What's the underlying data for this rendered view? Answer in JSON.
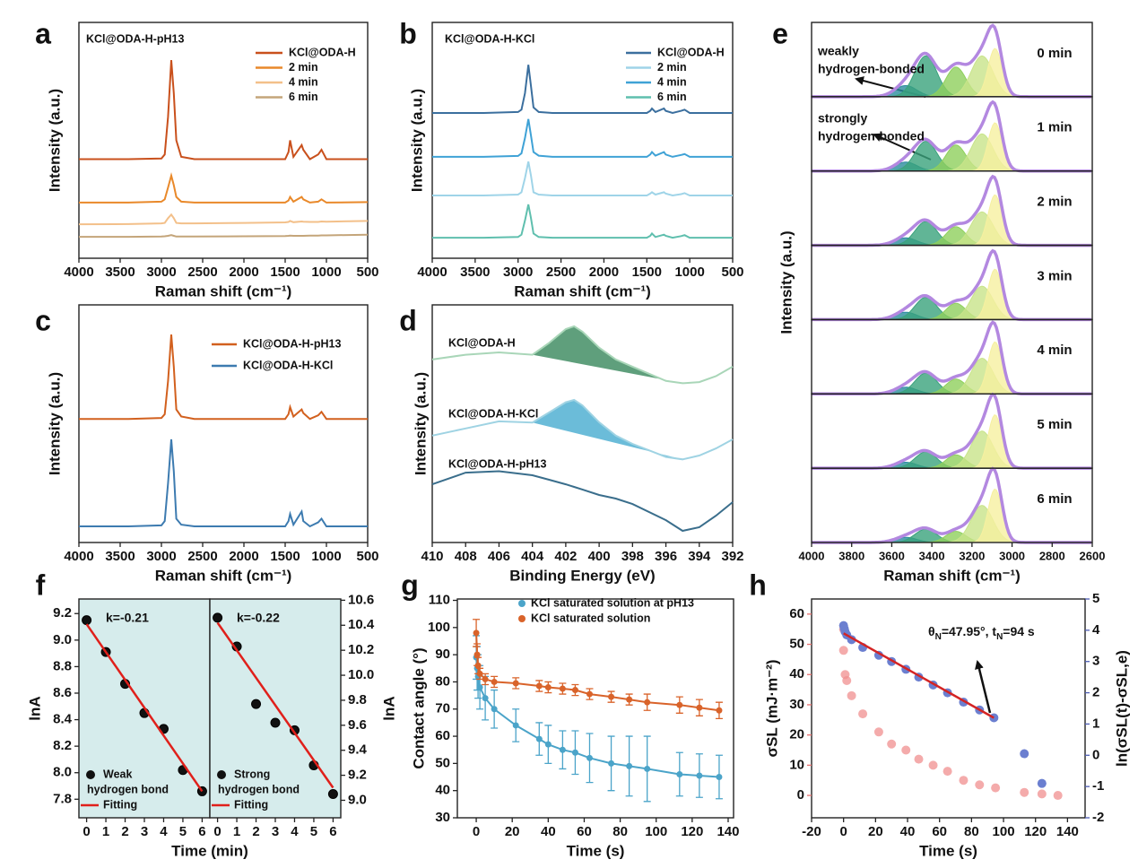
{
  "chart_data": [
    {
      "type": "line",
      "panel": "a",
      "annotation": "KCl@ODA-H-pH13",
      "xlabel": "Raman shift (cm⁻¹)",
      "ylabel": "Intensity (a.u.)",
      "x": [
        4000,
        3400,
        3000,
        2960,
        2920,
        2880,
        2850,
        2820,
        2760,
        2600,
        2000,
        1500,
        1460,
        1440,
        1400,
        1300,
        1280,
        1200,
        1100,
        1060,
        1000,
        500
      ],
      "xlim": [
        4000,
        500
      ],
      "xticks": [
        4000,
        3500,
        3000,
        2500,
        2000,
        1500,
        1000,
        500
      ],
      "ylim": [
        0,
        100
      ],
      "series": [
        {
          "name": "KCl@ODA-H",
          "color": "#c9501c",
          "values": [
            42,
            42,
            42.3,
            44,
            60,
            84,
            70,
            50,
            43,
            42,
            42,
            42,
            45,
            50,
            43,
            48,
            46,
            42,
            44,
            46,
            42,
            42
          ]
        },
        {
          "name": "2 min",
          "color": "#e9892a",
          "values": [
            23.6,
            23.6,
            24,
            25,
            30,
            35,
            31,
            26,
            24,
            23.6,
            23.6,
            23.6,
            24.5,
            26,
            24,
            26,
            25,
            23.6,
            24,
            25,
            23.6,
            23.8
          ]
        },
        {
          "name": "4 min",
          "color": "#f3c08a",
          "values": [
            14.4,
            14.5,
            14.8,
            15,
            17,
            18.5,
            17,
            15,
            14.8,
            14.8,
            15,
            15.2,
            15.4,
            15.8,
            15.3,
            15.6,
            15.5,
            15.4,
            15.4,
            15.6,
            15.5,
            15.8
          ]
        },
        {
          "name": "6 min",
          "color": "#c4a57a",
          "values": [
            9.1,
            9.1,
            9.2,
            9.3,
            9.5,
            9.8,
            9.5,
            9.2,
            9.2,
            9.2,
            9.3,
            9.4,
            9.5,
            9.6,
            9.5,
            9.5,
            9.5,
            9.6,
            9.6,
            9.7,
            9.7,
            10
          ]
        }
      ]
    },
    {
      "type": "line",
      "panel": "b",
      "annotation": "KCl@ODA-H-KCl",
      "xlabel": "Raman shift (cm⁻¹)",
      "ylabel": "Intensity (a.u.)",
      "x": [
        4000,
        3400,
        3000,
        2960,
        2920,
        2880,
        2850,
        2820,
        2760,
        2600,
        2000,
        1500,
        1460,
        1440,
        1400,
        1300,
        1280,
        1200,
        1100,
        1060,
        1000,
        500
      ],
      "xlim": [
        4000,
        500
      ],
      "xticks": [
        4000,
        3500,
        3000,
        2500,
        2000,
        1500,
        1000,
        500
      ],
      "ylim": [
        0,
        100
      ],
      "series": [
        {
          "name": "KCl@ODA-H",
          "color": "#3b6f9e",
          "values": [
            61.6,
            61.6,
            62,
            63,
            70,
            82,
            73,
            64,
            62,
            61.6,
            61.6,
            61.6,
            62.5,
            63.5,
            62,
            63.5,
            62.5,
            61.6,
            62.5,
            63,
            61.6,
            61.6
          ]
        },
        {
          "name": "2 min",
          "color": "#9fd4e8",
          "values": [
            26.6,
            26.6,
            27,
            28,
            34,
            41,
            35,
            28,
            27,
            26.6,
            26.6,
            26.6,
            27.4,
            28,
            27,
            28,
            27.4,
            26.6,
            27.2,
            27.6,
            26.6,
            26.6
          ]
        },
        {
          "name": "4 min",
          "color": "#3fa2d6",
          "values": [
            43,
            43,
            43.4,
            44.5,
            51,
            59,
            52,
            45,
            43.5,
            43,
            43,
            43,
            44,
            45,
            43.5,
            45,
            44,
            43,
            43.8,
            44.2,
            43,
            43
          ]
        },
        {
          "name": "6 min",
          "color": "#5fbfae",
          "values": [
            8.7,
            8.7,
            9,
            10,
            16,
            22.8,
            17,
            10.5,
            9,
            8.7,
            8.7,
            8.7,
            9.5,
            10.5,
            9,
            10,
            9.5,
            8.7,
            9.4,
            9.8,
            8.7,
            8.7
          ]
        }
      ]
    },
    {
      "type": "line",
      "panel": "c",
      "xlabel": "Raman shift (cm⁻¹)",
      "ylabel": "Intensity (a.u.)",
      "x": [
        4000,
        3400,
        3000,
        2960,
        2920,
        2880,
        2850,
        2820,
        2760,
        2600,
        2000,
        1500,
        1460,
        1440,
        1400,
        1300,
        1280,
        1200,
        1100,
        1060,
        1000,
        500
      ],
      "xlim": [
        4000,
        500
      ],
      "xticks": [
        4000,
        3500,
        3000,
        2500,
        2000,
        1500,
        1000,
        500
      ],
      "ylim": [
        0,
        100
      ],
      "series": [
        {
          "name": "KCl@ODA-H-pH13",
          "color": "#d2601e",
          "values": [
            52,
            52,
            52.4,
            54,
            68,
            87.5,
            74,
            56,
            53,
            52,
            52,
            52,
            54,
            57,
            53,
            56,
            54.5,
            52,
            53.5,
            55,
            52,
            52
          ]
        },
        {
          "name": "KCl@ODA-H-KCl",
          "color": "#3d7bb0",
          "values": [
            6.8,
            6.8,
            7.2,
            9,
            25,
            43.4,
            30,
            10,
            7.5,
            6.8,
            6.8,
            6.8,
            9,
            12,
            7.5,
            13,
            9,
            6.8,
            8.5,
            10,
            6.8,
            6.8
          ]
        }
      ]
    },
    {
      "type": "area",
      "panel": "d",
      "xlabel": "Binding Energy (eV)",
      "ylabel": "Intensity (a.u.)",
      "x": [
        410,
        408,
        406,
        404,
        403,
        402,
        401.5,
        401,
        400,
        399,
        398,
        396,
        395,
        394,
        393,
        392
      ],
      "xlim": [
        410,
        392
      ],
      "xticks": [
        410,
        408,
        406,
        404,
        402,
        400,
        398,
        396,
        394,
        392
      ],
      "ylim": [
        0,
        100
      ],
      "series": [
        {
          "name": "KCl@ODA-H",
          "color": "#a9d6b8",
          "fill": "#5f9f7c",
          "values": [
            77,
            79,
            80,
            79,
            84,
            89.8,
            91,
            88.7,
            82,
            77,
            74,
            68,
            67,
            67.5,
            70,
            74
          ]
        },
        {
          "name": "KCl@ODA-H-KCl",
          "color": "#9fd3e3",
          "fill": "#6bbcd9",
          "values": [
            45,
            48,
            51,
            50.5,
            54.7,
            59,
            60,
            57.7,
            50.6,
            45,
            41.5,
            36,
            35,
            36.6,
            39.6,
            43.4
          ]
        },
        {
          "name": "KCl@ODA-H-pH13",
          "color": "#3a6e8c",
          "values": [
            24.5,
            29.4,
            30,
            28.3,
            26.4,
            24.5,
            23.4,
            22.3,
            20,
            18.5,
            16.2,
            9.4,
            4.9,
            6.4,
            11.3,
            17
          ]
        }
      ]
    },
    {
      "type": "fit",
      "panel": "e",
      "xlabel": "Raman shift (cm⁻¹)",
      "ylabel": "Intensity (a.u.)",
      "xlim": [
        4000,
        2600
      ],
      "xticks": [
        4000,
        3800,
        3600,
        3400,
        3200,
        3000,
        2800,
        2600
      ],
      "ylim": [
        0,
        100
      ],
      "envelope_color": "#b388e0",
      "components": [
        {
          "center": 3530,
          "width": 55,
          "color": "#2b8c9e"
        },
        {
          "center": 3430,
          "width": 55,
          "color": "#3aa37c"
        },
        {
          "center": 3280,
          "width": 50,
          "color": "#8fd05c"
        },
        {
          "center": 3150,
          "width": 55,
          "color": "#c8e48a"
        },
        {
          "center": 3085,
          "width": 35,
          "color": "#f6f0a0"
        }
      ],
      "panels": [
        {
          "label": "0 min",
          "heights": [
            15,
            55,
            40,
            55,
            65
          ]
        },
        {
          "label": "1 min",
          "heights": [
            12,
            40,
            35,
            50,
            65
          ]
        },
        {
          "label": "2 min",
          "heights": [
            10,
            32,
            25,
            45,
            68
          ]
        },
        {
          "label": "3 min",
          "heights": [
            10,
            30,
            22,
            45,
            68
          ]
        },
        {
          "label": "4 min",
          "heights": [
            9,
            28,
            20,
            48,
            70
          ]
        },
        {
          "label": "5 min",
          "heights": [
            8,
            22,
            18,
            50,
            72
          ]
        },
        {
          "label": "6 min",
          "heights": [
            7,
            18,
            15,
            50,
            72
          ]
        }
      ],
      "annotations": [
        [
          "weakly",
          "hydrogen-bonded"
        ],
        [
          "strongly",
          "hydrogen-bonded"
        ]
      ]
    },
    {
      "type": "scatter",
      "panel": "f",
      "xlabel": "Time (min)",
      "ylabel": "lnA",
      "y2label": "lnA",
      "subplots": [
        {
          "background": "#d6ecec",
          "annotation": "k=-0.21",
          "x": [
            0,
            1,
            2,
            3,
            4,
            5,
            6
          ],
          "xlim": [
            -0.4,
            6.4
          ],
          "xticks": [
            0,
            1,
            2,
            3,
            4,
            5,
            6
          ],
          "ylim": [
            7.66,
            9.31
          ],
          "yticks": [
            7.8,
            {
              "value": 8,
              "label": "8.0"
            },
            8.2,
            8.4,
            8.6,
            8.8,
            {
              "value": 9,
              "label": "9.0"
            },
            9.2
          ],
          "series": [
            {
              "name": [
                "Weak",
                "hydrogen bond"
              ],
              "color": "#111111",
              "values": [
                9.15,
                8.91,
                8.67,
                8.45,
                8.33,
                8.02,
                7.86
              ]
            },
            {
              "name": "Fitting",
              "type": "line",
              "color": "#e0201b",
              "x": [
                0,
                6
              ],
              "values": [
                9.12,
                7.86
              ]
            }
          ]
        },
        {
          "background": "#d6ecec",
          "annotation": "k=-0.22",
          "x": [
            0,
            1,
            2,
            3,
            4,
            5,
            6
          ],
          "xlim": [
            -0.4,
            6.4
          ],
          "xticks": [
            0,
            1,
            2,
            3,
            4,
            5,
            6
          ],
          "y2lim": [
            8.86,
            10.61
          ],
          "y2ticks": [
            {
              "value": 9,
              "label": "9.0"
            },
            9.2,
            9.4,
            9.6,
            9.8,
            {
              "value": 10,
              "label": "10.0"
            },
            10.2,
            10.4,
            10.6
          ],
          "series": [
            {
              "name": [
                "Strong",
                "hydrogen bond"
              ],
              "color": "#111111",
              "axis": "y2",
              "values": [
                10.46,
                10.23,
                9.77,
                9.62,
                9.56,
                9.28,
                9.05
              ]
            },
            {
              "name": "Fitting",
              "type": "line",
              "color": "#e0201b",
              "axis": "y2",
              "x": [
                0,
                6
              ],
              "values": [
                10.42,
                9.1
              ]
            }
          ]
        }
      ]
    },
    {
      "type": "errorbar",
      "panel": "g",
      "xlabel": "Time (s)",
      "ylabel": "Contact angle (°)",
      "x": [
        0,
        0.5,
        1,
        2,
        5,
        10,
        22,
        35,
        40,
        48,
        55,
        63,
        75,
        85,
        95,
        113,
        124,
        135
      ],
      "xlim": [
        -10.5,
        143
      ],
      "xticks": [
        0,
        20,
        40,
        60,
        80,
        100,
        120,
        140
      ],
      "ylim": [
        30,
        110.5
      ],
      "yticks": [
        30,
        40,
        50,
        60,
        70,
        80,
        90,
        100,
        110
      ],
      "series": [
        {
          "name": "KCl saturated solution at pH13",
          "color": "#4ba4c9",
          "values": [
            89,
            85,
            82,
            78,
            74,
            70,
            64,
            59,
            57,
            55,
            54,
            52,
            50,
            49,
            48,
            46,
            45.5,
            45
          ],
          "errors": [
            8,
            8,
            8,
            8,
            8,
            7,
            6,
            6,
            7,
            7,
            8,
            9,
            10,
            11,
            12,
            8,
            8,
            8
          ]
        },
        {
          "name": "KCl saturated solution",
          "color": "#d9632a",
          "values": [
            98,
            90,
            86,
            83,
            81,
            80,
            79.5,
            78.5,
            78,
            77.5,
            77,
            75.5,
            74.5,
            73.5,
            72.5,
            71.5,
            70.5,
            69.5
          ],
          "errors": [
            5,
            4,
            3,
            2,
            2,
            2,
            2,
            2,
            2,
            2,
            2,
            2,
            2,
            2,
            3,
            3,
            3,
            3
          ]
        }
      ]
    },
    {
      "type": "scatter",
      "panel": "h",
      "xlabel": "Time (s)",
      "ylabel": "σSL (mJ·m⁻²)",
      "y2label": "ln(σSL(t)-σSL,e)",
      "y_color": "#e8706e",
      "y2_color": "#4d5db5",
      "xlim": [
        -20,
        151
      ],
      "xticks": [
        -20,
        0,
        20,
        40,
        60,
        80,
        100,
        120,
        140
      ],
      "ylim": [
        -7.4,
        65
      ],
      "yticks": [
        0,
        10,
        20,
        30,
        40,
        50,
        60
      ],
      "y2lim": [
        -2,
        5
      ],
      "y2ticks": [
        -2,
        -1,
        0,
        1,
        2,
        3,
        4,
        5
      ],
      "annotation": [
        "θ",
        "N",
        "=47.95°,  t",
        "N",
        "=94 s"
      ],
      "series": [
        {
          "color": "#f08f8f",
          "x": [
            0,
            0,
            1,
            2,
            5,
            12,
            22,
            30,
            39,
            47,
            56,
            65,
            75,
            85,
            95,
            113,
            124,
            134
          ],
          "values": [
            55,
            48,
            40,
            38,
            33,
            27,
            21,
            17,
            15,
            12,
            10,
            8,
            5,
            3.5,
            2.5,
            1,
            0.5,
            0
          ]
        },
        {
          "color": "#6b7fd0",
          "axis": "y2",
          "x": [
            0,
            0.5,
            1,
            2,
            5,
            12,
            22,
            30,
            39,
            47,
            56,
            65,
            75,
            85,
            94,
            113,
            124
          ],
          "values": [
            4.15,
            4.05,
            3.95,
            3.85,
            3.7,
            3.45,
            3.2,
            3,
            2.75,
            2.5,
            2.25,
            2,
            1.7,
            1.45,
            1.2,
            0.05,
            -0.9
          ]
        },
        {
          "type": "line",
          "color": "#d42424",
          "axis": "y2",
          "x": [
            0,
            94
          ],
          "values": [
            3.9,
            1.2
          ]
        }
      ]
    }
  ]
}
